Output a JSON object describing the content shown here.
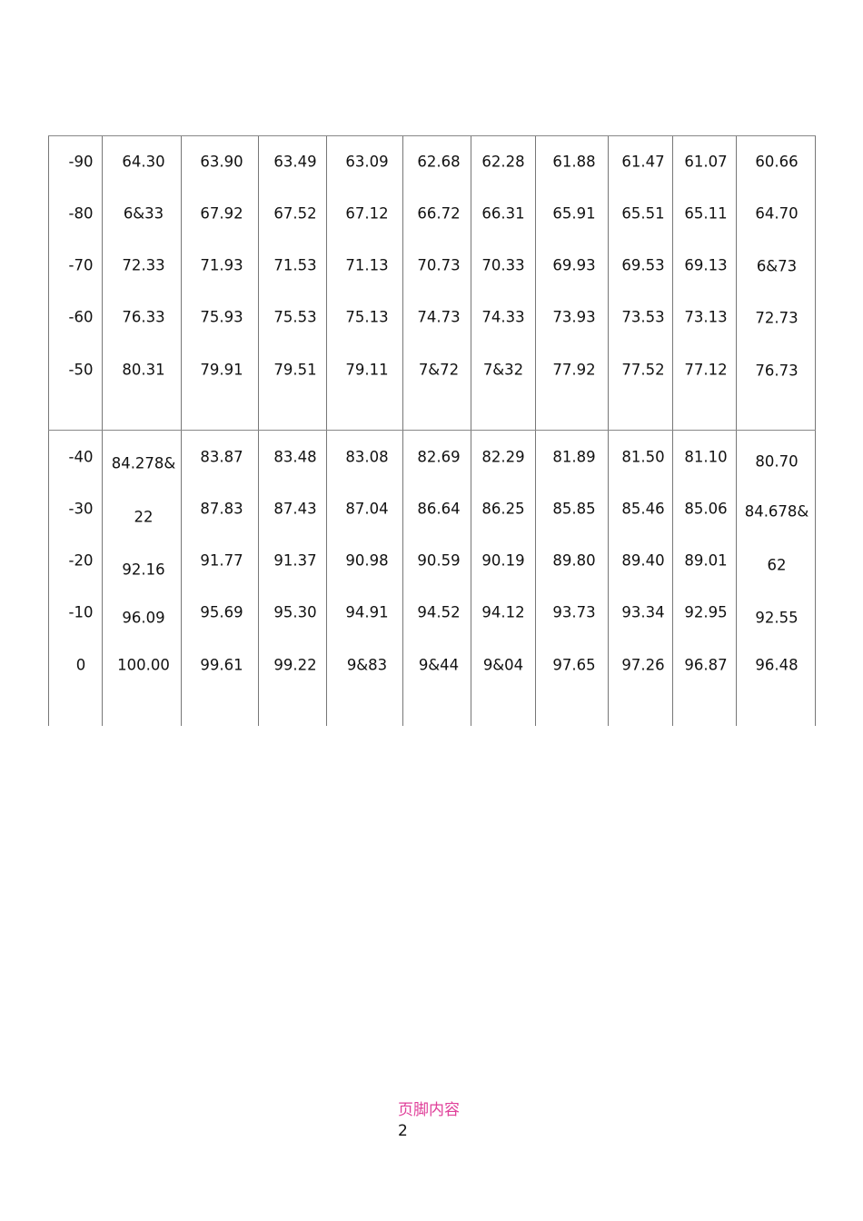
{
  "table": {
    "blocks": [
      {
        "rows": [
          [
            "-90",
            "64.30",
            "63.90",
            "63.49",
            "63.09",
            "62.68",
            "62.28",
            "61.88",
            "61.47",
            "61.07",
            "60.66"
          ],
          [
            "-80",
            "6&33",
            "67.92",
            "67.52",
            "67.12",
            "66.72",
            "66.31",
            "65.91",
            "65.51",
            "65.11",
            "64.70"
          ],
          [
            "-70",
            "72.33",
            "71.93",
            "71.53",
            "71.13",
            "70.73",
            "70.33",
            "69.93",
            "69.53",
            "69.13",
            "6&73"
          ],
          [
            "-60",
            "76.33",
            "75.93",
            "75.53",
            "75.13",
            "74.73",
            "74.33",
            "73.93",
            "73.53",
            "73.13",
            "72.73"
          ],
          [
            "-50",
            "80.31",
            "79.91",
            "79.51",
            "79.11",
            "7&72",
            "7&32",
            "77.92",
            "77.52",
            "77.12",
            "76.73"
          ]
        ]
      },
      {
        "rows": [
          [
            "-40",
            "84.278&",
            "83.87",
            "83.48",
            "83.08",
            "82.69",
            "82.29",
            "81.89",
            "81.50",
            "81.10",
            "80.70"
          ],
          [
            "-30",
            "22",
            "87.83",
            "87.43",
            "87.04",
            "86.64",
            "86.25",
            "85.85",
            "85.46",
            "85.06",
            "84.678&"
          ],
          [
            "-20",
            "92.16",
            "91.77",
            "91.37",
            "90.98",
            "90.59",
            "90.19",
            "89.80",
            "89.40",
            "89.01",
            "62"
          ],
          [
            "-10",
            "96.09",
            "95.69",
            "95.30",
            "94.91",
            "94.52",
            "94.12",
            "93.73",
            "93.34",
            "92.95",
            "92.55"
          ],
          [
            "0",
            "100.00",
            "99.61",
            "99.22",
            "9&83",
            "9&44",
            "9&04",
            "97.65",
            "97.26",
            "96.87",
            "96.48"
          ]
        ]
      }
    ]
  },
  "footer": {
    "label": "页脚内容",
    "page_number": "2"
  }
}
